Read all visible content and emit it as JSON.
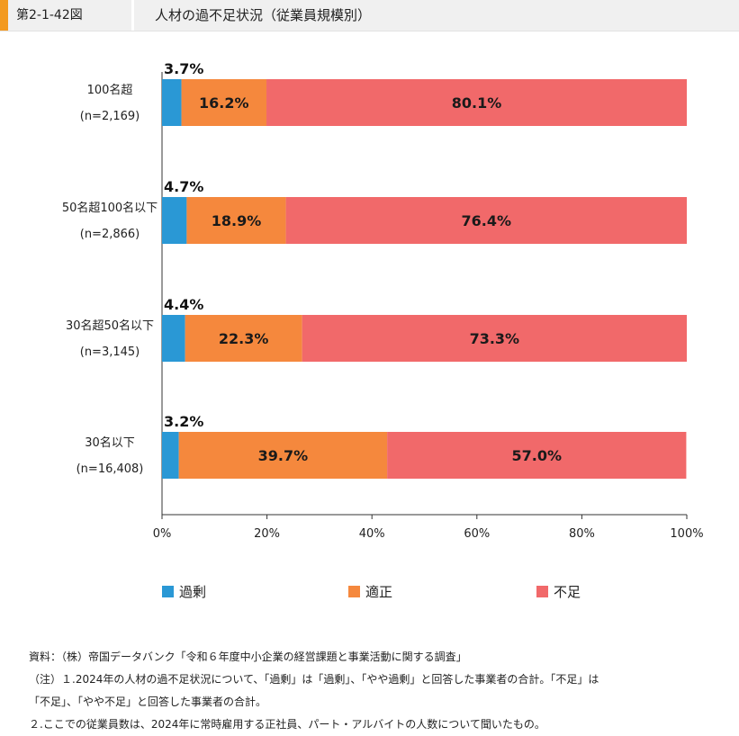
{
  "header": {
    "figure_number": "第2-1-42図",
    "title": "人材の過不足状況（従業員規模別）"
  },
  "chart_data": {
    "type": "bar",
    "orientation": "horizontal",
    "stacked": true,
    "categories": [
      {
        "name": "100名超",
        "n": "(n=2,169)"
      },
      {
        "name": "50名超100名以下",
        "n": "(n=2,866)"
      },
      {
        "name": "30名超50名以下",
        "n": "(n=3,145)"
      },
      {
        "name": "30名以下",
        "n": "(n=16,408)"
      }
    ],
    "series": [
      {
        "name": "過剰",
        "color": "#2a98d5",
        "values": [
          3.7,
          4.7,
          4.4,
          3.2
        ],
        "labels": [
          "3.7%",
          "4.7%",
          "4.4%",
          "3.2%"
        ]
      },
      {
        "name": "適正",
        "color": "#f5883d",
        "values": [
          16.2,
          18.9,
          22.3,
          39.7
        ],
        "labels": [
          "16.2%",
          "18.9%",
          "22.3%",
          "39.7%"
        ]
      },
      {
        "name": "不足",
        "color": "#f1696a",
        "values": [
          80.1,
          76.4,
          73.3,
          57.0
        ],
        "labels": [
          "80.1%",
          "76.4%",
          "73.3%",
          "57.0%"
        ]
      }
    ],
    "xlim": [
      0,
      100
    ],
    "x_ticks": [
      "0%",
      "20%",
      "40%",
      "60%",
      "80%",
      "100%"
    ],
    "grid": false,
    "legend_position": "bottom"
  },
  "footer": {
    "source": "資料：（株）帝国データバンク「令和６年度中小企業の経営課題と事業活動に関する調査」",
    "note1": "（注）１.2024年の人材の過不足状況について、「過剰」は「過剰」、「やや過剰」と回答した事業者の合計。「不足」は",
    "note1_cont": "「不足」、「やや不足」と回答した事業者の合計。",
    "note2": "２.ここでの従業員数は、2024年に常時雇用する正社員、パート・アルバイトの人数について聞いたもの。"
  }
}
